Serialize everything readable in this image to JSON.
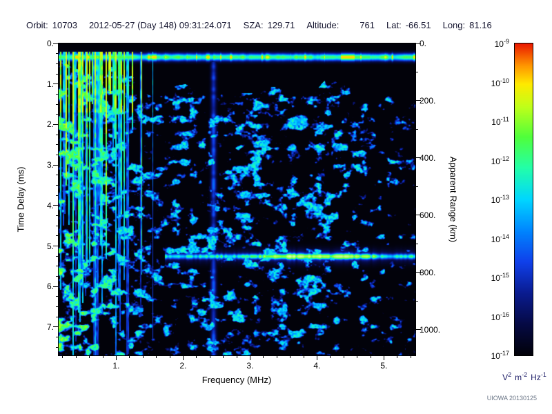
{
  "colors": {
    "header_text": "#14142e",
    "axis_text": "#000000",
    "unit_text": "#1c1c66",
    "watermark_text": "#6a7586",
    "plot_background": "#000000"
  },
  "header": {
    "orbit_label": "Orbit:",
    "orbit": "10703",
    "datetime": "2012-05-27 (Day 148) 09:31:24.071",
    "sza_label": "SZA:",
    "sza": "129.71",
    "altitude_label": "Altitude:",
    "altitude": "761",
    "lat_label": "Lat:",
    "lat": "-66.51",
    "long_label": "Long:",
    "long": "81.16"
  },
  "watermark": "UIOWA 20130125",
  "chart_data": {
    "type": "heatmap",
    "description": "Radar sounder ionogram: received spectral density versus frequency and time delay",
    "xlabel": "Frequency (MHz)",
    "ylabel_left": "Time Delay (ms)",
    "ylabel_right": "Apparent Range (km)",
    "x_range_mhz": [
      0.14,
      5.47
    ],
    "x_ticks": [
      1,
      2,
      3,
      4,
      5
    ],
    "x_tick_labels": [
      "1.",
      "2.",
      "3.",
      "4.",
      "5."
    ],
    "x_minor_step_mhz": 0.2,
    "y_range_ms": [
      0,
      7.7
    ],
    "y_ticks": [
      0,
      1,
      2,
      3,
      4,
      5,
      6,
      7
    ],
    "y_tick_labels": [
      "0.",
      "1.",
      "2.",
      "3.",
      "4.",
      "5.",
      "6.",
      "7."
    ],
    "y_minor_step_ms": 0.25,
    "right_axis_max_km": 1090,
    "right_ticks_km": [
      0,
      200,
      400,
      600,
      800,
      1000
    ],
    "right_tick_labels": [
      "0.",
      "200.",
      "400.",
      "600.",
      "800.",
      "1000."
    ],
    "right_minor_step_km": 100,
    "colorbar": {
      "scale": "log",
      "max": "1e-9",
      "min": "1e-17",
      "exponents": [
        -9,
        -10,
        -11,
        -12,
        -13,
        -14,
        -15,
        -16,
        -17
      ],
      "unit_parts": [
        {
          "base": "V",
          "exp": "2"
        },
        {
          "base": "m",
          "exp": "-2"
        },
        {
          "base": "Hz",
          "exp": "-1"
        }
      ]
    },
    "features": [
      {
        "name": "direct-signal-band",
        "type": "horizontal-band",
        "delay_ms_center": 0.33,
        "delay_ms_halfwidth": 0.09,
        "freq_mhz": [
          0.14,
          5.47
        ],
        "intensity": 0.7
      },
      {
        "name": "low-frequency-ionospheric-clutter",
        "type": "vertical-stripes",
        "freq_mhz": [
          0.14,
          1.55
        ],
        "delay_ms": [
          0.2,
          7.7
        ],
        "intensity": 0.7
      },
      {
        "name": "clutter-upper-envelope",
        "type": "diagonal-edge",
        "from_mhz_ms": [
          0.55,
          0.46
        ],
        "to_mhz_ms": [
          1.6,
          1.1
        ]
      },
      {
        "name": "surface-reflection",
        "type": "horizontal-line",
        "delay_ms": 5.25,
        "apparent_range_km": 780,
        "freq_mhz": [
          1.72,
          5.47
        ],
        "peak_freq_mhz": [
          3.2,
          4.6
        ],
        "intensity": 0.95
      },
      {
        "name": "interference-line",
        "type": "vertical-line",
        "freq_mhz": 2.45,
        "intensity": 0.32
      },
      {
        "name": "background-speckle",
        "type": "noise",
        "intensity_range": [
          0.1,
          0.55
        ]
      }
    ]
  }
}
